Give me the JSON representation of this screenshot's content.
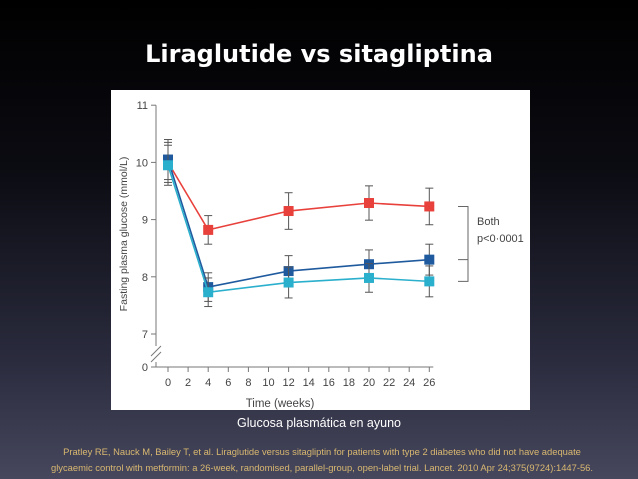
{
  "slide": {
    "title": "Liraglutide vs sitagliptina",
    "caption": "Glucosa plasmática en ayuno",
    "reference_line1": "Pratley RE, Nauck M, Bailey T, et al. Liraglutide versus sitagliptin for patients with type 2 diabetes who did not have adequate",
    "reference_line2": "glycaemic control with metformin: a 26-week, randomised, parallel-group, open-label trial. Lancet. 2010 Apr 24;375(9724):1447-56."
  },
  "chart_data": {
    "type": "line",
    "xlabel": "Time (weeks)",
    "ylabel": "Fasting plasma glucose (mmol/L)",
    "x_ticks": [
      0,
      2,
      4,
      6,
      8,
      10,
      12,
      14,
      16,
      18,
      20,
      22,
      24,
      26
    ],
    "y_ticks": [
      7,
      8,
      9,
      10,
      11
    ],
    "y_zero_label": "0",
    "ylim": [
      7,
      11
    ],
    "y_axis_break": true,
    "x": [
      0,
      4,
      12,
      20,
      26
    ],
    "series": [
      {
        "color": "#e8413c",
        "marker": "square",
        "values": [
          10.0,
          8.82,
          9.15,
          9.29,
          9.23
        ],
        "errors": [
          0.35,
          0.25,
          0.32,
          0.3,
          0.32
        ]
      },
      {
        "color": "#1f5a9e",
        "marker": "square",
        "values": [
          10.05,
          7.82,
          8.1,
          8.22,
          8.3
        ],
        "errors": [
          0.35,
          0.25,
          0.27,
          0.25,
          0.27
        ]
      },
      {
        "color": "#2aafcc",
        "marker": "square",
        "values": [
          9.95,
          7.73,
          7.9,
          7.98,
          7.92
        ],
        "errors": [
          0.35,
          0.25,
          0.27,
          0.25,
          0.27
        ]
      }
    ],
    "annotation": {
      "line1": "Both",
      "line2": "p<0·0001"
    }
  }
}
